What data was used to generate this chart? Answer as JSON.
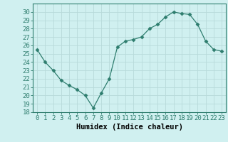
{
  "x": [
    0,
    1,
    2,
    3,
    4,
    5,
    6,
    7,
    8,
    9,
    10,
    11,
    12,
    13,
    14,
    15,
    16,
    17,
    18,
    19,
    20,
    21,
    22,
    23
  ],
  "y": [
    25.5,
    24.0,
    23.0,
    21.8,
    21.2,
    20.7,
    20.0,
    18.5,
    20.3,
    22.0,
    25.8,
    26.5,
    26.7,
    27.0,
    28.0,
    28.5,
    29.4,
    30.0,
    29.8,
    29.7,
    28.5,
    26.5,
    25.5,
    25.3
  ],
  "xlabel": "Humidex (Indice chaleur)",
  "ylim": [
    18,
    31
  ],
  "xlim": [
    -0.5,
    23.5
  ],
  "yticks": [
    18,
    19,
    20,
    21,
    22,
    23,
    24,
    25,
    26,
    27,
    28,
    29,
    30
  ],
  "xticks": [
    0,
    1,
    2,
    3,
    4,
    5,
    6,
    7,
    8,
    9,
    10,
    11,
    12,
    13,
    14,
    15,
    16,
    17,
    18,
    19,
    20,
    21,
    22,
    23
  ],
  "line_color": "#2e7d6e",
  "marker": "D",
  "marker_size": 2.5,
  "bg_color": "#d0f0f0",
  "grid_color": "#b8dada",
  "tick_label_fontsize": 6.5,
  "xlabel_fontsize": 7.5
}
